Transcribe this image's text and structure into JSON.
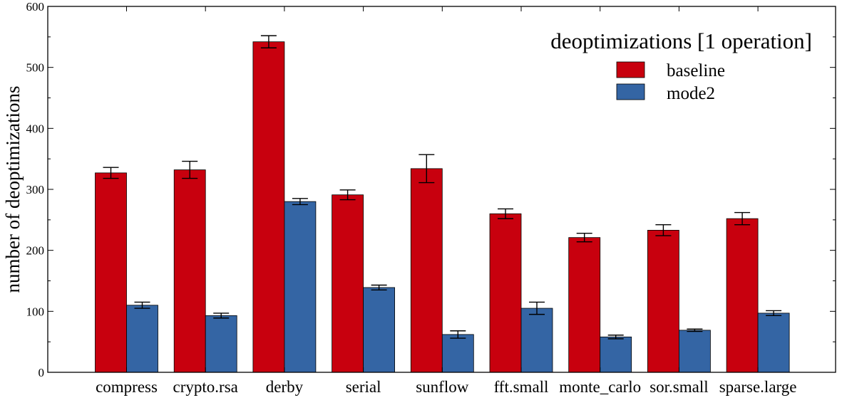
{
  "chart_data": {
    "type": "bar",
    "title": "",
    "xlabel": "",
    "ylabel": "number of deoptimizations",
    "ylim": [
      0,
      600
    ],
    "yticks": [
      0,
      100,
      200,
      300,
      400,
      500,
      600
    ],
    "grid": false,
    "legend": {
      "title": "deoptimizations [1 operation]",
      "position": "top-right"
    },
    "categories": [
      "compress",
      "crypto.rsa",
      "derby",
      "serial",
      "sunflow",
      "fft.small",
      "monte_carlo",
      "sor.small",
      "sparse.large"
    ],
    "series": [
      {
        "name": "baseline",
        "color": "#c8000e",
        "values": [
          327,
          332,
          542,
          291,
          334,
          260,
          221,
          233,
          252
        ],
        "errors": [
          9,
          14,
          10,
          8,
          23,
          8,
          7,
          9,
          10
        ]
      },
      {
        "name": "mode2",
        "color": "#3465a4",
        "values": [
          110,
          93,
          280,
          139,
          62,
          105,
          58,
          69,
          97
        ],
        "errors": [
          5,
          4,
          5,
          4,
          6,
          10,
          3,
          2,
          4
        ]
      }
    ]
  }
}
